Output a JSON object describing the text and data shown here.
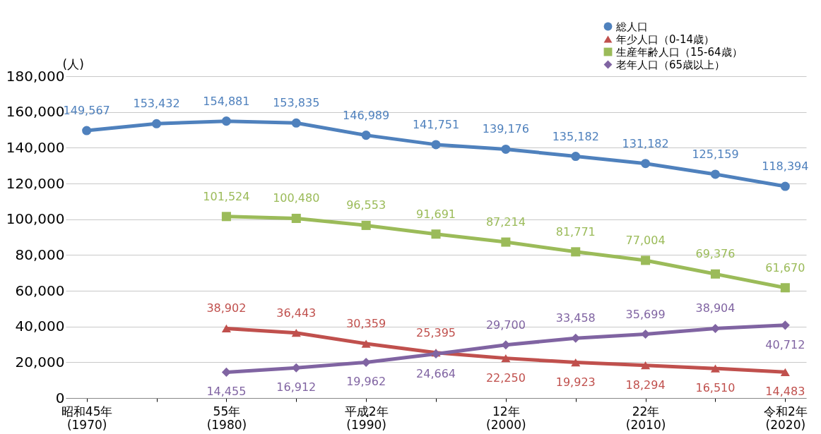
{
  "chart_data": {
    "type": "line",
    "ylabel": "(人)",
    "categories": [
      "昭和45年\n(1970)",
      null,
      "55年\n(1980)",
      null,
      "平成2年\n(1990)",
      null,
      "12年\n(2000)",
      null,
      "22年\n(2010)",
      null,
      "令和2年\n(2020)"
    ],
    "series": [
      {
        "name": "総人口",
        "color": "#4f81bd",
        "marker": "circle",
        "values": [
          149567,
          153432,
          154881,
          153835,
          146989,
          141751,
          139176,
          135182,
          131182,
          125159,
          118394
        ],
        "value_labels": [
          "149,567",
          "153,432",
          "154,881",
          "153,835",
          "146,989",
          "141,751",
          "139,176",
          "135,182",
          "131,182",
          "125,159",
          "118,394"
        ]
      },
      {
        "name": "年少人口（0-14歳）",
        "color": "#c0504d",
        "marker": "triangle",
        "values": [
          null,
          null,
          38902,
          36443,
          30359,
          25395,
          22250,
          19923,
          18294,
          16510,
          14483
        ],
        "value_labels": [
          null,
          null,
          "38,902",
          "36,443",
          "30,359",
          "25,395",
          "22,250",
          "19,923",
          "18,294",
          "16,510",
          "14,483"
        ]
      },
      {
        "name": "生産年齢人口（15-64歳）",
        "color": "#9bbb59",
        "marker": "square",
        "values": [
          null,
          null,
          101524,
          100480,
          96553,
          91691,
          87214,
          81771,
          77004,
          69376,
          61670
        ],
        "value_labels": [
          null,
          null,
          "101,524",
          "100,480",
          "96,553",
          "91,691",
          "87,214",
          "81,771",
          "77,004",
          "69,376",
          "61,670"
        ]
      },
      {
        "name": "老年人口（65歳以上）",
        "color": "#8064a2",
        "marker": "diamond",
        "values": [
          null,
          null,
          14455,
          16912,
          19962,
          24664,
          29700,
          33458,
          35699,
          38904,
          40712
        ],
        "value_labels": [
          null,
          null,
          "14,455",
          "16,912",
          "19,962",
          "24,664",
          "29,700",
          "33,458",
          "35,699",
          "38,904",
          "40,712"
        ]
      }
    ],
    "ylim": [
      0,
      180000
    ],
    "yticks": [
      0,
      {
        "value": 20000,
        "label": "20,000"
      },
      {
        "value": 40000,
        "label": "40,000"
      },
      {
        "value": 60000,
        "label": "60,000"
      },
      {
        "value": 80000,
        "label": "80,000"
      },
      {
        "value": 100000,
        "label": "100,000"
      },
      {
        "value": 120000,
        "label": "120,000"
      },
      {
        "value": 140000,
        "label": "140,000"
      },
      {
        "value": 160000,
        "label": "160,000"
      },
      {
        "value": 180000,
        "label": "180,000"
      }
    ],
    "grid": "y",
    "legend": "top right",
    "line_style": "solid"
  }
}
